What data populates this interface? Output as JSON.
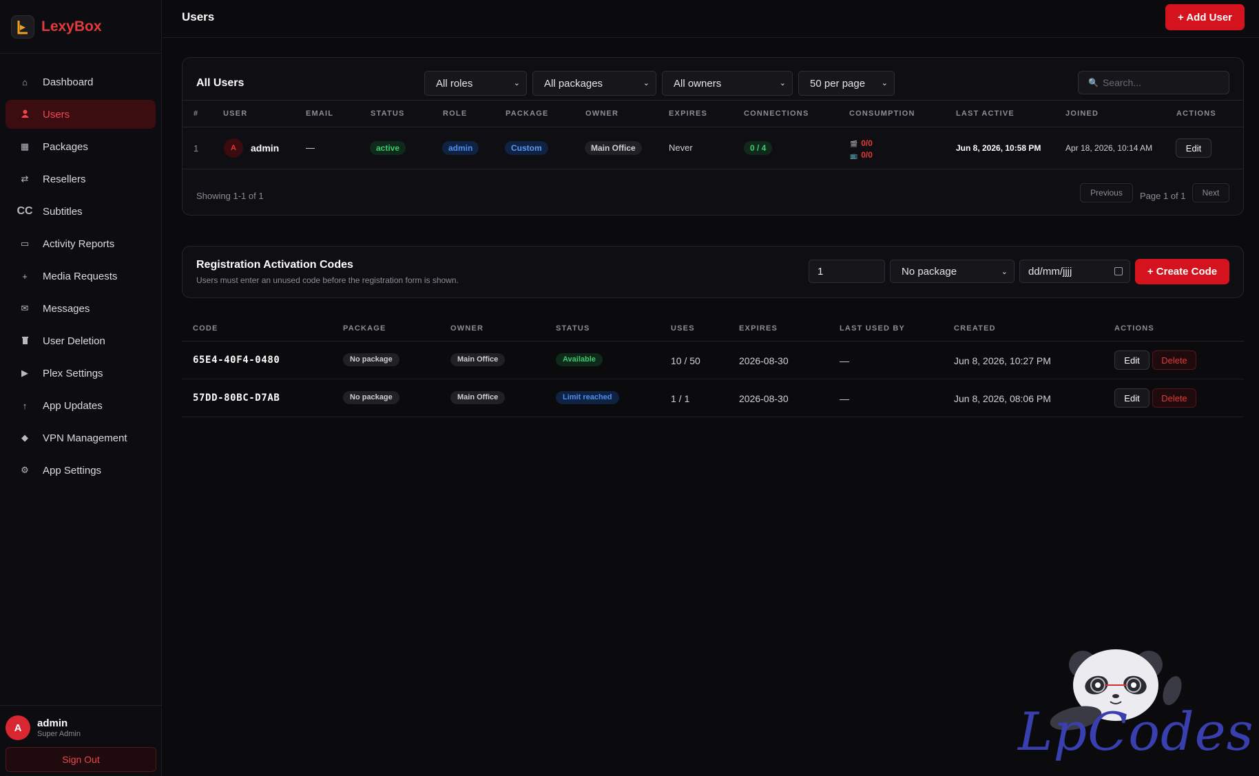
{
  "app": {
    "name": "LexyBox"
  },
  "sidebar": {
    "items": [
      {
        "label": "Dashboard",
        "icon": "home-icon",
        "glyph": "⌂"
      },
      {
        "label": "Users",
        "icon": "user-icon",
        "glyph": "👤",
        "active": true
      },
      {
        "label": "Packages",
        "icon": "package-icon",
        "glyph": "▦"
      },
      {
        "label": "Resellers",
        "icon": "swap-icon",
        "glyph": "⇄"
      },
      {
        "label": "Subtitles",
        "icon": "cc-icon",
        "glyph": "CC"
      },
      {
        "label": "Activity Reports",
        "icon": "monitor-icon",
        "glyph": "▭"
      },
      {
        "label": "Media Requests",
        "icon": "plus-icon",
        "glyph": "+"
      },
      {
        "label": "Messages",
        "icon": "mail-icon",
        "glyph": "✉"
      },
      {
        "label": "User Deletion",
        "icon": "trash-icon",
        "glyph": "🗑"
      },
      {
        "label": "Plex Settings",
        "icon": "play-icon",
        "glyph": "▶"
      },
      {
        "label": "App Updates",
        "icon": "arrow-up-icon",
        "glyph": "↑"
      },
      {
        "label": "VPN Management",
        "icon": "diamond-icon",
        "glyph": "◆"
      },
      {
        "label": "App Settings",
        "icon": "gear-icon",
        "glyph": "⚙"
      }
    ],
    "user": {
      "initial": "A",
      "name": "admin",
      "role": "Super Admin"
    },
    "sign_out": "Sign Out"
  },
  "topbar": {
    "title": "Users",
    "add_user": "+ Add User"
  },
  "users": {
    "title": "All Users",
    "filters": {
      "roles": "All roles",
      "packages": "All packages",
      "owners": "All owners",
      "per_page": "50 per page"
    },
    "search_placeholder": "Search...",
    "columns": [
      "#",
      "USER",
      "EMAIL",
      "STATUS",
      "ROLE",
      "PACKAGE",
      "OWNER",
      "EXPIRES",
      "CONNECTIONS",
      "CONSUMPTION",
      "LAST ACTIVE",
      "JOINED",
      "ACTIONS"
    ],
    "rows": [
      {
        "index": "1",
        "initial": "A",
        "name": "admin",
        "email": "—",
        "status": "active",
        "role": "admin",
        "package": "Custom",
        "owner": "Main Office",
        "expires": "Never",
        "connections": "0 / 4",
        "consumption_a": "0/0",
        "consumption_b": "0/0",
        "last_active": "Jun 8, 2026, 10:58 PM",
        "joined": "Apr 18, 2026, 10:14 AM",
        "action": "Edit"
      }
    ],
    "showing": "Showing 1-1 of 1",
    "previous": "Previous",
    "page_info": "Page 1 of 1",
    "next": "Next"
  },
  "registration": {
    "title": "Registration Activation Codes",
    "subtitle": "Users must enter an unused code before the registration form is shown.",
    "uses_value": "1",
    "package_select": "No package",
    "date_placeholder": "dd/mm/jjjj",
    "create_button": "+ Create Code"
  },
  "codes": {
    "columns": [
      "CODE",
      "PACKAGE",
      "OWNER",
      "STATUS",
      "USES",
      "EXPIRES",
      "LAST USED BY",
      "CREATED",
      "ACTIONS"
    ],
    "rows": [
      {
        "code": "65E4-40F4-0480",
        "package": "No package",
        "owner": "Main Office",
        "status": "Available",
        "uses": "10 / 50",
        "expires": "2026-08-30",
        "last_used_by": "—",
        "created": "Jun 8, 2026, 10:27 PM",
        "edit": "Edit",
        "delete": "Delete"
      },
      {
        "code": "57DD-80BC-D7AB",
        "package": "No package",
        "owner": "Main Office",
        "status": "Limit reached",
        "uses": "1 / 1",
        "expires": "2026-08-30",
        "last_used_by": "—",
        "created": "Jun 8, 2026, 08:06 PM",
        "edit": "Edit",
        "delete": "Delete"
      }
    ]
  },
  "watermark": {
    "text": "LpCodes"
  },
  "colors": {
    "accent": "#d5131f",
    "background": "#0b0b0e",
    "sidebar": "#0d0d11",
    "success": "#3ecb6c",
    "info": "#4d8ff0"
  }
}
